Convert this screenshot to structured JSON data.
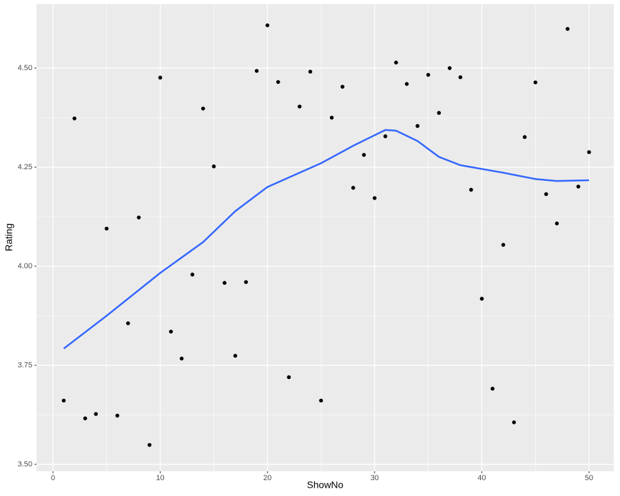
{
  "chart_data": {
    "type": "scatter",
    "x_label": "ShowNo",
    "y_label": "Rating",
    "x": [
      1,
      2,
      3,
      4,
      5,
      6,
      7,
      8,
      9,
      10,
      11,
      12,
      13,
      14,
      15,
      16,
      17,
      18,
      19,
      20,
      21,
      22,
      23,
      24,
      25,
      26,
      27,
      28,
      29,
      30,
      31,
      32,
      33,
      34,
      35,
      36,
      37,
      38,
      39,
      40,
      41,
      42,
      43,
      44,
      45,
      46,
      47,
      48,
      49,
      50
    ],
    "values": [
      3.661,
      4.373,
      3.616,
      3.627,
      4.095,
      3.623,
      3.856,
      4.123,
      3.549,
      4.476,
      3.835,
      3.767,
      3.979,
      4.398,
      4.252,
      3.958,
      3.774,
      3.96,
      4.493,
      4.608,
      4.465,
      3.72,
      4.403,
      4.491,
      3.661,
      4.375,
      4.453,
      4.198,
      4.281,
      4.172,
      4.328,
      4.514,
      4.46,
      4.354,
      4.483,
      4.387,
      4.5,
      4.477,
      4.193,
      3.918,
      3.691,
      4.054,
      3.606,
      4.326,
      4.464,
      4.182,
      4.108,
      4.599,
      4.201,
      4.288
    ],
    "color": "#000000",
    "smooth": {
      "x": [
        1,
        5,
        10,
        14,
        17,
        20,
        25,
        28,
        31,
        32,
        34,
        36,
        38,
        42,
        45,
        47,
        50
      ],
      "values": [
        3.792,
        3.875,
        3.983,
        4.061,
        4.139,
        4.2,
        4.26,
        4.304,
        4.344,
        4.342,
        4.316,
        4.276,
        4.255,
        4.236,
        4.22,
        4.215,
        4.217
      ],
      "color": "#3366ff"
    },
    "xlim": [
      -1.54,
      52.31
    ],
    "ylim": [
      3.4826,
      4.6615
    ],
    "xticks": [
      0,
      10,
      20,
      30,
      40,
      50
    ],
    "yticks": [
      {
        "value": 3.5,
        "label": "3.50"
      },
      {
        "value": 3.75,
        "label": "3.75"
      },
      {
        "value": 4,
        "label": "4.00"
      },
      {
        "value": 4.25,
        "label": "4.25"
      },
      {
        "value": 4.5,
        "label": "4.50"
      }
    ],
    "grid": true
  }
}
